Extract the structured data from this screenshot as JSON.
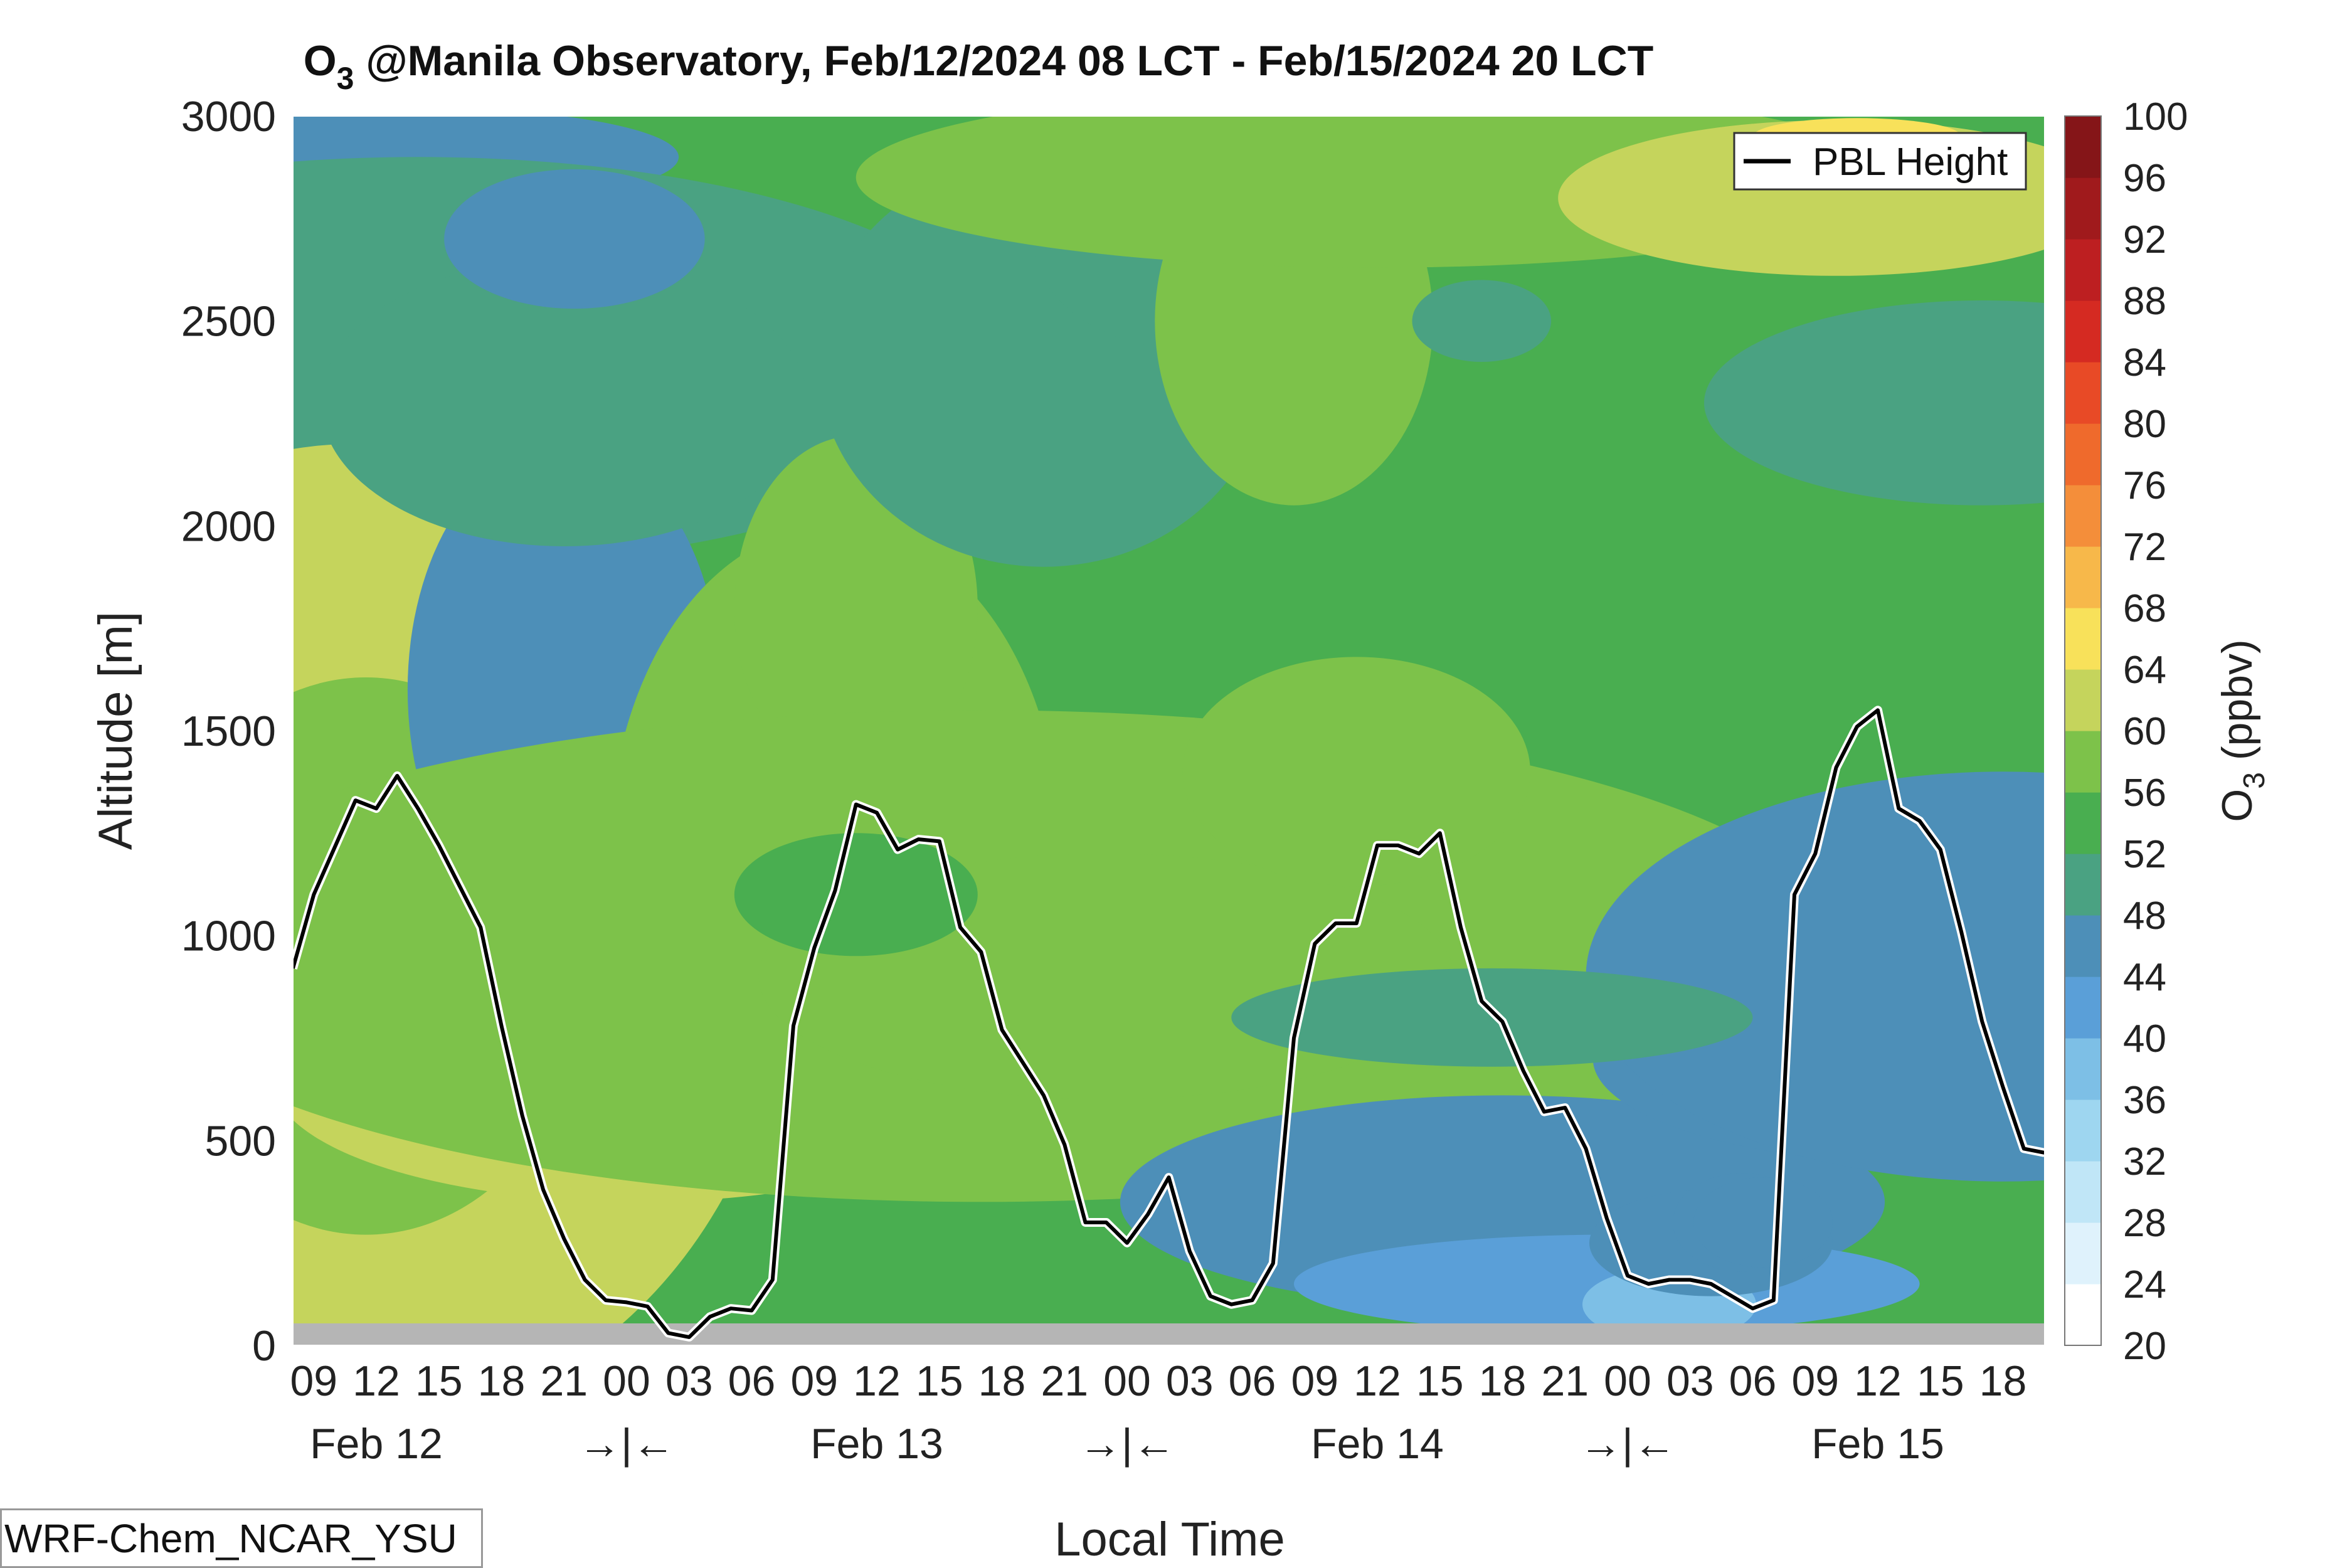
{
  "chart_data": {
    "type": "heatmap",
    "title_main": "O",
    "title_sub": "3",
    "title_rest": " @Manila Observatory, Feb/12/2024 08 LCT - Feb/15/2024 20 LCT",
    "xlabel": "Local Time",
    "ylabel": "Altitude [m]",
    "ylim": [
      0,
      3000
    ],
    "yticks": [
      "0",
      "500",
      "1000",
      "1500",
      "2000",
      "2500",
      "3000"
    ],
    "xlim_hours": [
      0,
      84
    ],
    "hour_labels": [
      "09",
      "12",
      "15",
      "18",
      "21",
      "00",
      "03",
      "06",
      "09",
      "12",
      "15",
      "18",
      "21",
      "00",
      "03",
      "06",
      "09",
      "12",
      "15",
      "18",
      "21",
      "00",
      "03",
      "06",
      "09",
      "12",
      "15",
      "18"
    ],
    "day_labels": [
      "Feb 12",
      "→|←",
      "Feb 13",
      "→|←",
      "Feb 14",
      "→|←",
      "Feb 15"
    ],
    "colorbar": {
      "label_main": "O",
      "label_sub": "3",
      "label_rest": " (ppbv)",
      "min": 20,
      "max": 100,
      "tick_labels": [
        "20",
        "24",
        "28",
        "32",
        "36",
        "40",
        "44",
        "48",
        "52",
        "56",
        "60",
        "64",
        "68",
        "72",
        "76",
        "80",
        "84",
        "88",
        "92",
        "96",
        "100"
      ],
      "colors": [
        "#ffffff",
        "#dff2fc",
        "#c0e6f7",
        "#9ed6f0",
        "#7dbfe6",
        "#5a9fd8",
        "#4d8fb8",
        "#4aa282",
        "#49ae50",
        "#7dc24a",
        "#c5d45c",
        "#f8e15a",
        "#f7b84a",
        "#f48e3a",
        "#ef6a2c",
        "#e84a26",
        "#d52a22",
        "#bd1f21",
        "#a01a1c",
        "#851518"
      ]
    },
    "series": [
      {
        "name": "PBL Height",
        "x_hours": [
          0,
          1,
          3,
          4,
          5,
          6,
          7,
          9,
          10,
          11,
          12,
          13,
          14,
          15,
          16,
          17,
          18,
          19,
          20,
          21,
          22,
          23,
          24,
          25,
          26,
          27,
          28,
          29,
          30,
          31,
          32,
          33,
          34,
          35,
          36,
          37,
          38,
          39,
          40,
          41,
          42,
          43,
          44,
          45,
          46,
          47,
          48,
          49,
          50,
          51,
          52,
          53,
          54,
          55,
          56,
          57,
          58,
          59,
          60,
          61,
          62,
          63,
          64,
          65,
          66,
          67,
          68,
          69,
          70,
          71,
          72,
          73,
          74,
          75,
          76,
          77,
          78,
          79,
          80,
          81,
          82,
          83,
          84
        ],
        "values": [
          920,
          1100,
          1330,
          1310,
          1390,
          1310,
          1220,
          1020,
          780,
          560,
          380,
          260,
          160,
          110,
          105,
          95,
          30,
          20,
          70,
          90,
          85,
          160,
          780,
          970,
          1110,
          1320,
          1300,
          1210,
          1235,
          1230,
          1020,
          960,
          770,
          690,
          610,
          490,
          300,
          300,
          250,
          320,
          410,
          230,
          120,
          100,
          110,
          200,
          750,
          980,
          1030,
          1030,
          1220,
          1220,
          1200,
          1250,
          1020,
          840,
          790,
          670,
          570,
          580,
          480,
          310,
          170,
          150,
          160,
          160,
          150,
          120,
          90,
          110,
          1100,
          1200,
          1410,
          1510,
          1550,
          1310,
          1280,
          1210,
          1010,
          790,
          630,
          480,
          470
        ]
      }
    ],
    "legend": {
      "location": "top-right",
      "entries": [
        "PBL Height"
      ]
    },
    "credit": "WRF-Chem_NCAR_YSU"
  }
}
